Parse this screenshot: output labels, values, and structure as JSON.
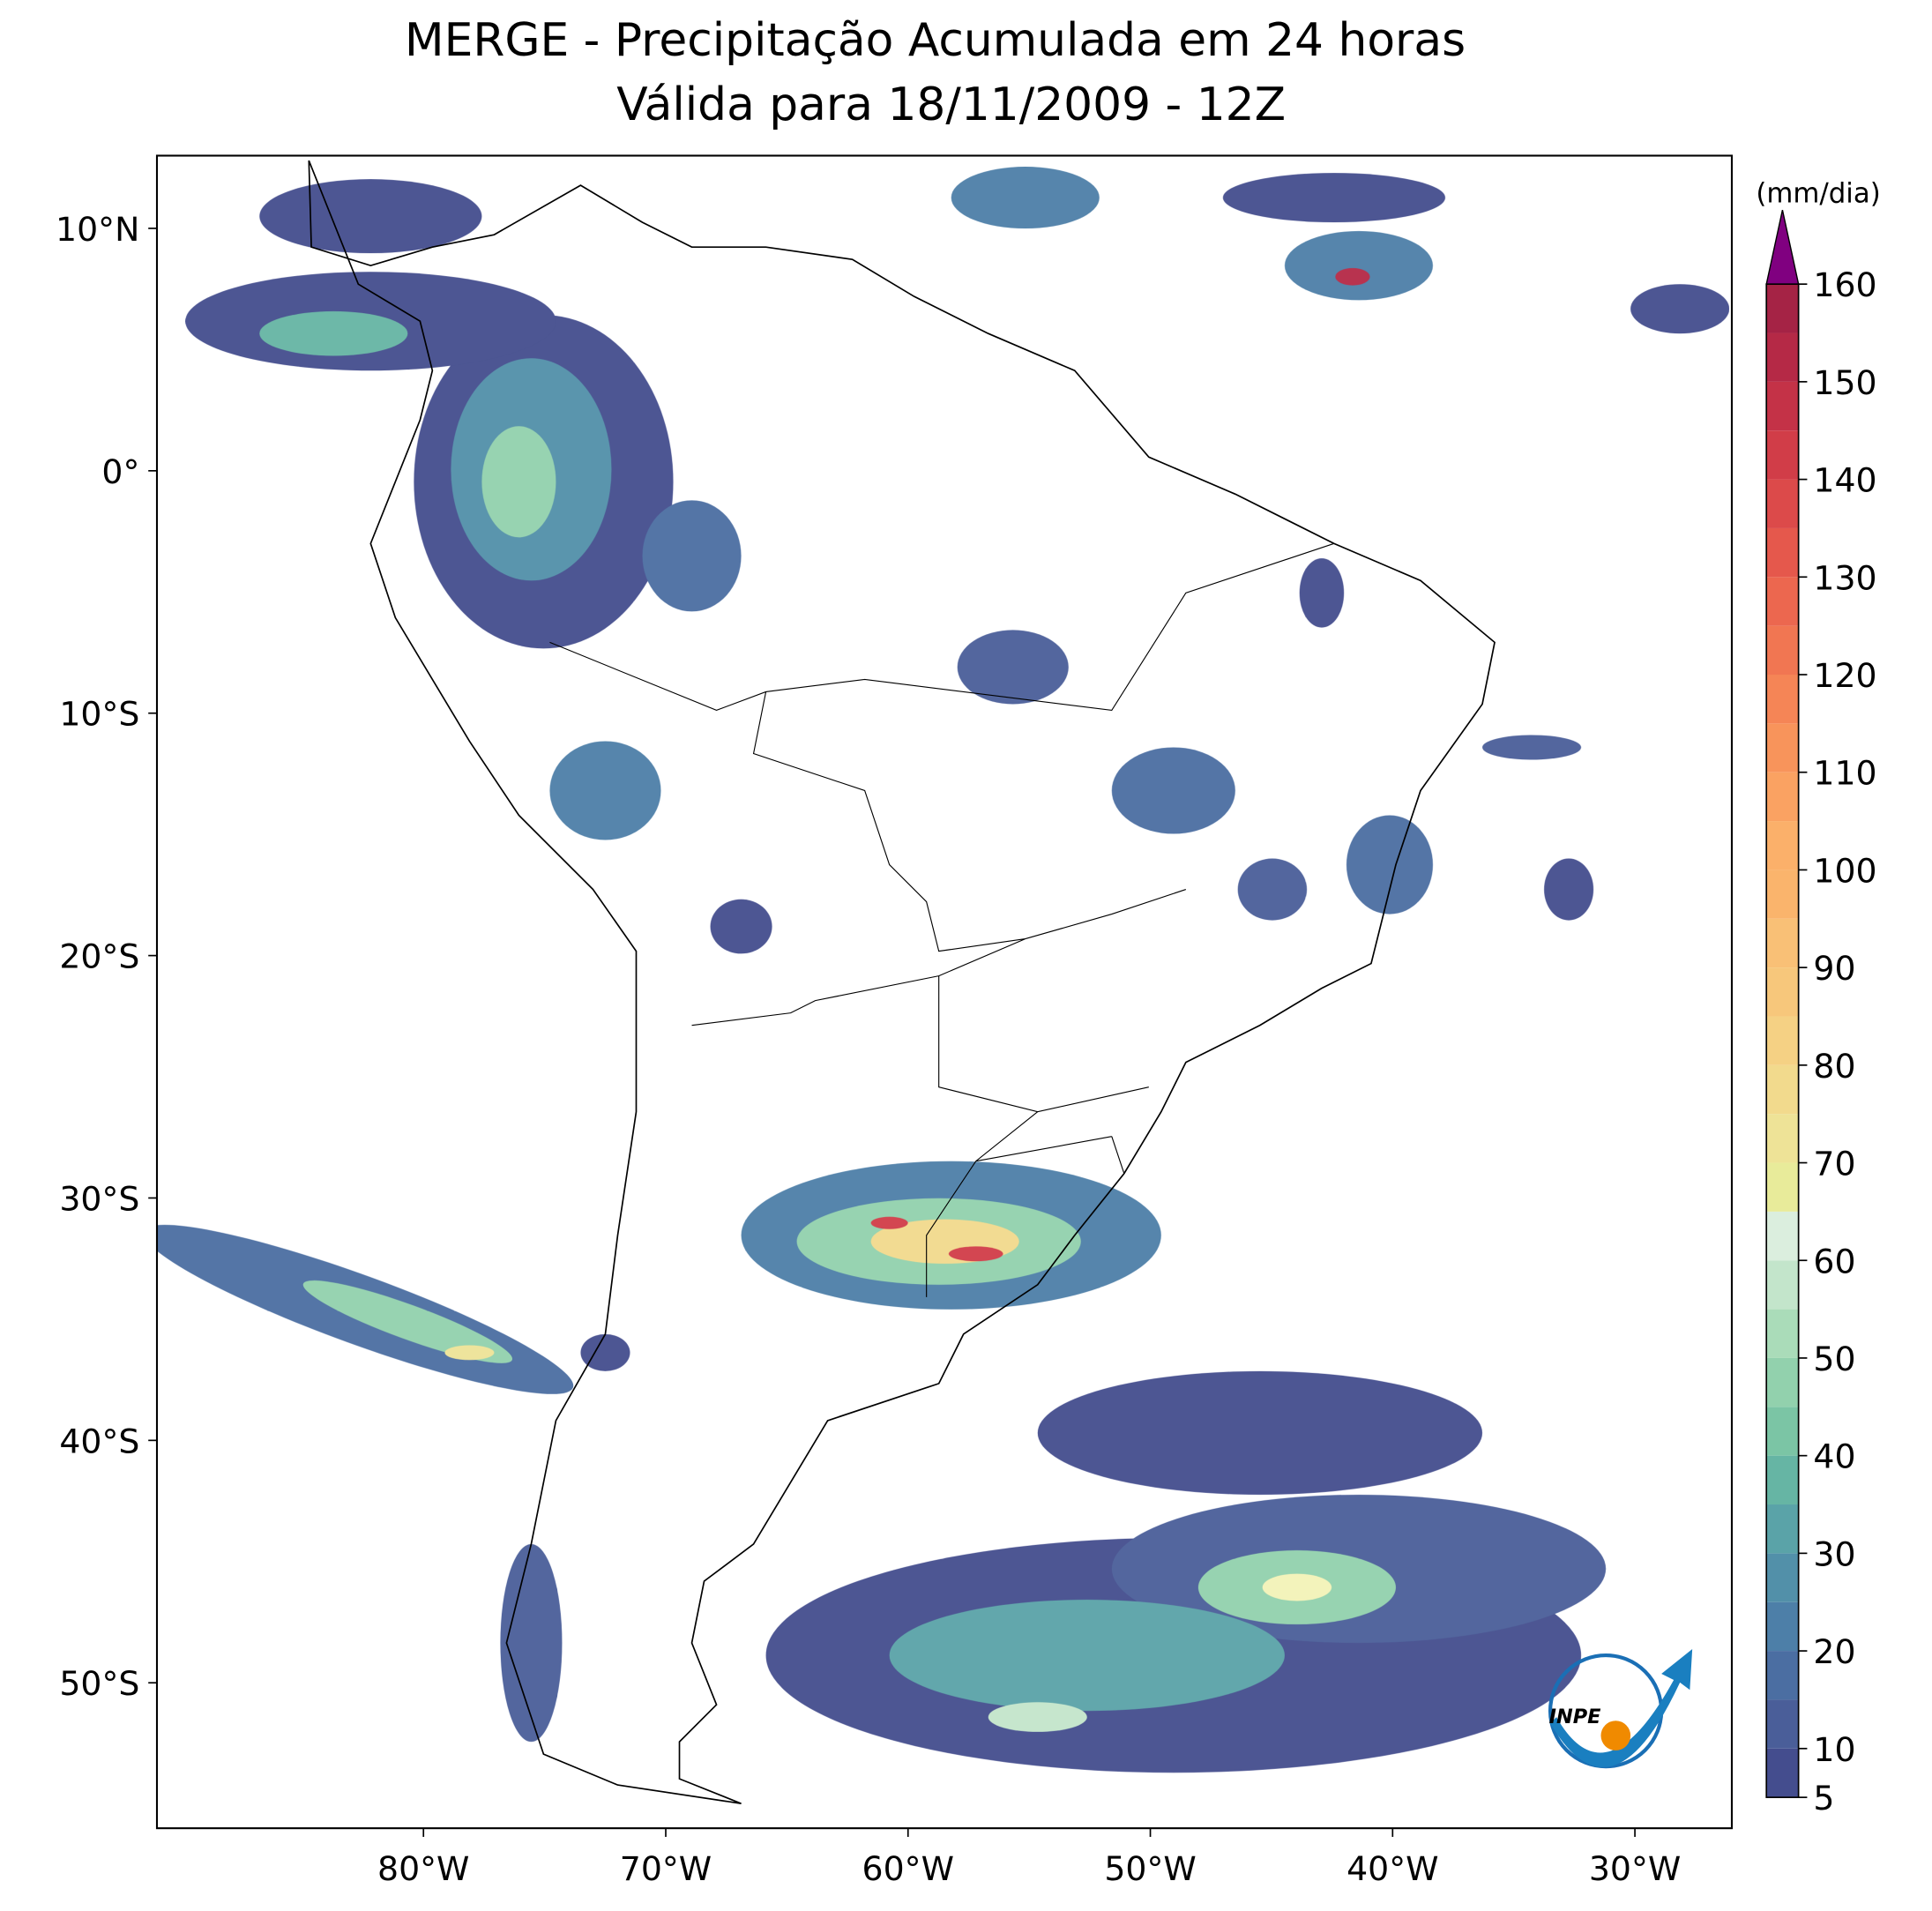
{
  "title": "MERGE - Precipitação Acumulada em 24 horas",
  "subtitle": "Válida para 18/11/2009 - 12Z",
  "map": {
    "xlim": [
      -91,
      -26
    ],
    "ylim": [
      -56,
      13
    ],
    "xticks": [
      {
        "value": -80,
        "label": "80°W"
      },
      {
        "value": -70,
        "label": "70°W"
      },
      {
        "value": -60,
        "label": "60°W"
      },
      {
        "value": -50,
        "label": "50°W"
      },
      {
        "value": -40,
        "label": "40°W"
      },
      {
        "value": -30,
        "label": "30°W"
      }
    ],
    "yticks": [
      {
        "value": 10,
        "label": "10°N"
      },
      {
        "value": 0,
        "label": "0°"
      },
      {
        "value": -10,
        "label": "10°S"
      },
      {
        "value": -20,
        "label": "20°S"
      },
      {
        "value": -30,
        "label": "30°S"
      },
      {
        "value": -40,
        "label": "40°S"
      },
      {
        "value": -50,
        "label": "50°S"
      }
    ]
  },
  "colorbar": {
    "label": "(mm/dia)",
    "lim": [
      5,
      160
    ],
    "levels": [
      5,
      10,
      15,
      20,
      25,
      30,
      35,
      40,
      45,
      50,
      55,
      60,
      65,
      70,
      75,
      80,
      85,
      90,
      95,
      100,
      105,
      110,
      115,
      120,
      125,
      130,
      135,
      140,
      145,
      150,
      155,
      160
    ],
    "colors": [
      "#444d8e",
      "#4a5e99",
      "#4b6ea2",
      "#4d7fa8",
      "#5290a9",
      "#5aa3a8",
      "#66b5a4",
      "#7bc5a5",
      "#92d1ad",
      "#aadcb9",
      "#c3e5cb",
      "#dbeede",
      "#e8eb9a",
      "#eee397",
      "#f2da8d",
      "#f5d184",
      "#f7c77b",
      "#f9c076",
      "#fab46c",
      "#fbb06a",
      "#faa262",
      "#f8945b",
      "#f58556",
      "#f17652",
      "#ec674f",
      "#e5584c",
      "#dc4a4a",
      "#d13d48",
      "#c43247",
      "#b52946",
      "#a52345"
    ],
    "extend_color": "#800080",
    "ticks": [
      5,
      10,
      20,
      30,
      40,
      50,
      60,
      70,
      80,
      90,
      100,
      110,
      120,
      130,
      140,
      150,
      160
    ]
  },
  "logo": "INPE"
}
